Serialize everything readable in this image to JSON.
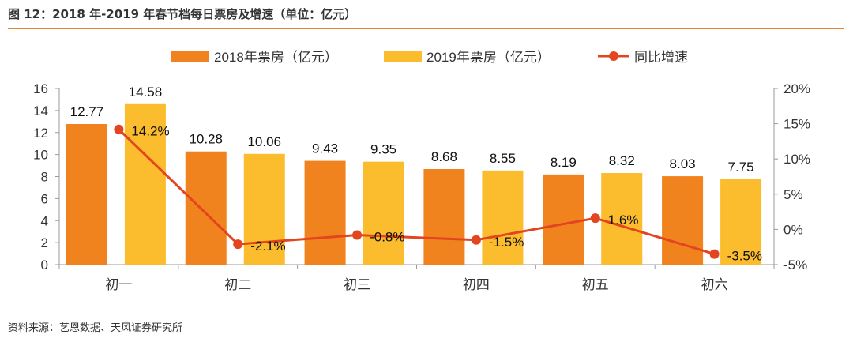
{
  "figure": {
    "title": "图 12：2018 年-2019 年春节档每日票房及增速（单位：亿元）",
    "source": "资料来源：艺恩数据、天风证券研究所"
  },
  "chart_data": {
    "type": "bar",
    "categories": [
      "初一",
      "初二",
      "初三",
      "初四",
      "初五",
      "初六"
    ],
    "series": [
      {
        "name": "2018年票房（亿元）",
        "type": "bar",
        "axis": "left",
        "color": "#f0831e",
        "values": [
          12.77,
          10.28,
          9.43,
          8.68,
          8.19,
          8.03
        ],
        "labels": [
          "12.77",
          "10.28",
          "9.43",
          "8.68",
          "8.19",
          "8.03"
        ]
      },
      {
        "name": "2019年票房（亿元）",
        "type": "bar",
        "axis": "left",
        "color": "#fbbc2d",
        "values": [
          14.58,
          10.06,
          9.35,
          8.55,
          8.32,
          7.75
        ],
        "labels": [
          "14.58",
          "10.06",
          "9.35",
          "8.55",
          "8.32",
          "7.75"
        ]
      },
      {
        "name": "同比增速",
        "type": "line",
        "axis": "right",
        "color": "#e2451f",
        "values": [
          14.2,
          -2.1,
          -0.8,
          -1.5,
          1.6,
          -3.5
        ],
        "labels": [
          "14.2%",
          "-2.1%",
          "-0.8%",
          "-1.5%",
          "1.6%",
          "-3.5%"
        ]
      }
    ],
    "y_left": {
      "min": 0,
      "max": 16,
      "step": 2,
      "ticks": [
        "0",
        "2",
        "4",
        "6",
        "8",
        "10",
        "12",
        "14",
        "16"
      ]
    },
    "y_right": {
      "min": -5,
      "max": 20,
      "step": 5,
      "ticks": [
        "-5%",
        "0%",
        "5%",
        "10%",
        "15%",
        "20%"
      ]
    },
    "legend_position": "top-center",
    "grid": false
  }
}
